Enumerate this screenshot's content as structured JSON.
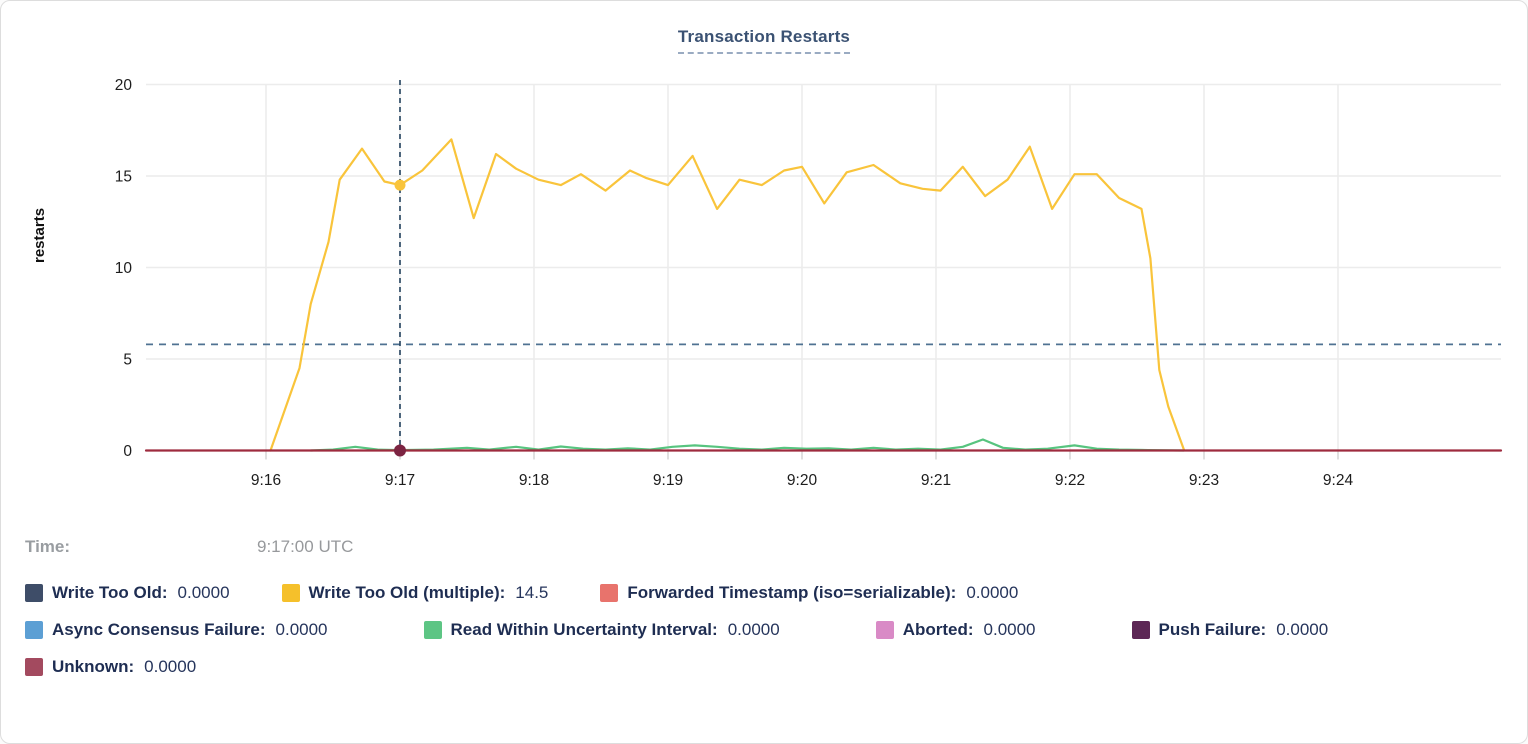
{
  "title": "Transaction Restarts",
  "ylabel": "restarts",
  "tooltip": {
    "time_label": "Time:",
    "time_value": "9:17:00 UTC"
  },
  "legend": {
    "rows": [
      [
        {
          "name": "write-too-old",
          "label": "Write Too Old:",
          "value": "0.0000",
          "color": "#3e4d68"
        },
        {
          "name": "write-too-old-multiple",
          "label": "Write Too Old (multiple):",
          "value": "14.5",
          "color": "#f5c02b"
        },
        {
          "name": "forwarded-timestamp",
          "label": "Forwarded Timestamp (iso=serializable):",
          "value": "0.0000",
          "color": "#e8736c"
        }
      ],
      [
        {
          "name": "async-consensus-failure",
          "label": "Async Consensus Failure:",
          "value": "0.0000",
          "color": "#5c9fd4"
        },
        {
          "name": "read-within-uncertainty-interval",
          "label": "Read Within Uncertainty Interval:",
          "value": "0.0000",
          "color": "#5dc584"
        },
        {
          "name": "aborted",
          "label": "Aborted:",
          "value": "0.0000",
          "color": "#d98ac6"
        },
        {
          "name": "push-failure",
          "label": "Push Failure:",
          "value": "0.0000",
          "color": "#5d2755"
        }
      ],
      [
        {
          "name": "unknown",
          "label": "Unknown:",
          "value": "0.0000",
          "color": "#a34a5f"
        }
      ]
    ]
  },
  "chart_data": {
    "type": "line",
    "title": "Transaction Restarts",
    "xlabel": "",
    "ylabel": "restarts",
    "ylim": [
      0,
      20
    ],
    "y_ticks": [
      0,
      5,
      10,
      15,
      20
    ],
    "x_ticks": [
      "9:16",
      "9:17",
      "9:18",
      "9:19",
      "9:20",
      "9:21",
      "9:22",
      "9:23",
      "9:24"
    ],
    "x_unit": "seconds after 9:16:00",
    "grid": true,
    "threshold_value": 5.8,
    "threshold_style": "dashed",
    "hover": {
      "x_seconds": 60,
      "time": "9:17:00 UTC",
      "points": [
        {
          "series": "Write Too Old (multiple)",
          "value": 14.5,
          "color": "#f9c43b"
        },
        {
          "series": "Unknown",
          "value": 0,
          "color": "#7c2442"
        }
      ]
    },
    "series": [
      {
        "name": "Read Within Uncertainty Interval",
        "color": "#57c47f",
        "points": [
          [
            20,
            0
          ],
          [
            30,
            0.05
          ],
          [
            40,
            0.2
          ],
          [
            50,
            0.05
          ],
          [
            60,
            0.02
          ],
          [
            75,
            0.05
          ],
          [
            90,
            0.15
          ],
          [
            100,
            0.05
          ],
          [
            112,
            0.2
          ],
          [
            122,
            0.05
          ],
          [
            132,
            0.22
          ],
          [
            142,
            0.1
          ],
          [
            152,
            0.05
          ],
          [
            162,
            0.12
          ],
          [
            172,
            0.05
          ],
          [
            182,
            0.2
          ],
          [
            192,
            0.28
          ],
          [
            202,
            0.2
          ],
          [
            212,
            0.1
          ],
          [
            222,
            0.05
          ],
          [
            232,
            0.15
          ],
          [
            242,
            0.1
          ],
          [
            252,
            0.12
          ],
          [
            262,
            0.05
          ],
          [
            272,
            0.15
          ],
          [
            282,
            0.05
          ],
          [
            292,
            0.1
          ],
          [
            302,
            0.05
          ],
          [
            312,
            0.2
          ],
          [
            321,
            0.6
          ],
          [
            330,
            0.15
          ],
          [
            340,
            0.05
          ],
          [
            350,
            0.1
          ],
          [
            362,
            0.28
          ],
          [
            372,
            0.1
          ],
          [
            382,
            0.05
          ],
          [
            395,
            0.02
          ],
          [
            411,
            0
          ]
        ]
      },
      {
        "name": "Write Too Old (multiple)",
        "color": "#f9c43b",
        "points": [
          [
            2,
            0
          ],
          [
            15,
            4.5
          ],
          [
            20,
            8
          ],
          [
            28,
            11.4
          ],
          [
            33,
            14.8
          ],
          [
            43,
            16.5
          ],
          [
            53,
            14.7
          ],
          [
            60,
            14.5
          ],
          [
            70,
            15.3
          ],
          [
            83,
            17.0
          ],
          [
            93,
            12.7
          ],
          [
            103,
            16.2
          ],
          [
            112,
            15.4
          ],
          [
            122,
            14.8
          ],
          [
            132,
            14.5
          ],
          [
            141,
            15.1
          ],
          [
            152,
            14.2
          ],
          [
            163,
            15.3
          ],
          [
            170,
            14.9
          ],
          [
            180,
            14.5
          ],
          [
            191,
            16.1
          ],
          [
            202,
            13.2
          ],
          [
            212,
            14.8
          ],
          [
            222,
            14.5
          ],
          [
            232,
            15.3
          ],
          [
            240,
            15.5
          ],
          [
            250,
            13.5
          ],
          [
            260,
            15.2
          ],
          [
            272,
            15.6
          ],
          [
            284,
            14.6
          ],
          [
            294,
            14.3
          ],
          [
            302,
            14.2
          ],
          [
            312,
            15.5
          ],
          [
            322,
            13.9
          ],
          [
            332,
            14.8
          ],
          [
            342,
            16.6
          ],
          [
            352,
            13.2
          ],
          [
            362,
            15.1
          ],
          [
            372,
            15.1
          ],
          [
            382,
            13.8
          ],
          [
            392,
            13.2
          ],
          [
            396,
            10.5
          ],
          [
            400,
            4.4
          ],
          [
            404,
            2.4
          ],
          [
            411,
            0.05
          ]
        ]
      },
      {
        "name": "Unknown",
        "color": "#9e2b3e",
        "points": [
          [
            -54,
            0
          ],
          [
            553,
            0
          ]
        ]
      }
    ]
  }
}
